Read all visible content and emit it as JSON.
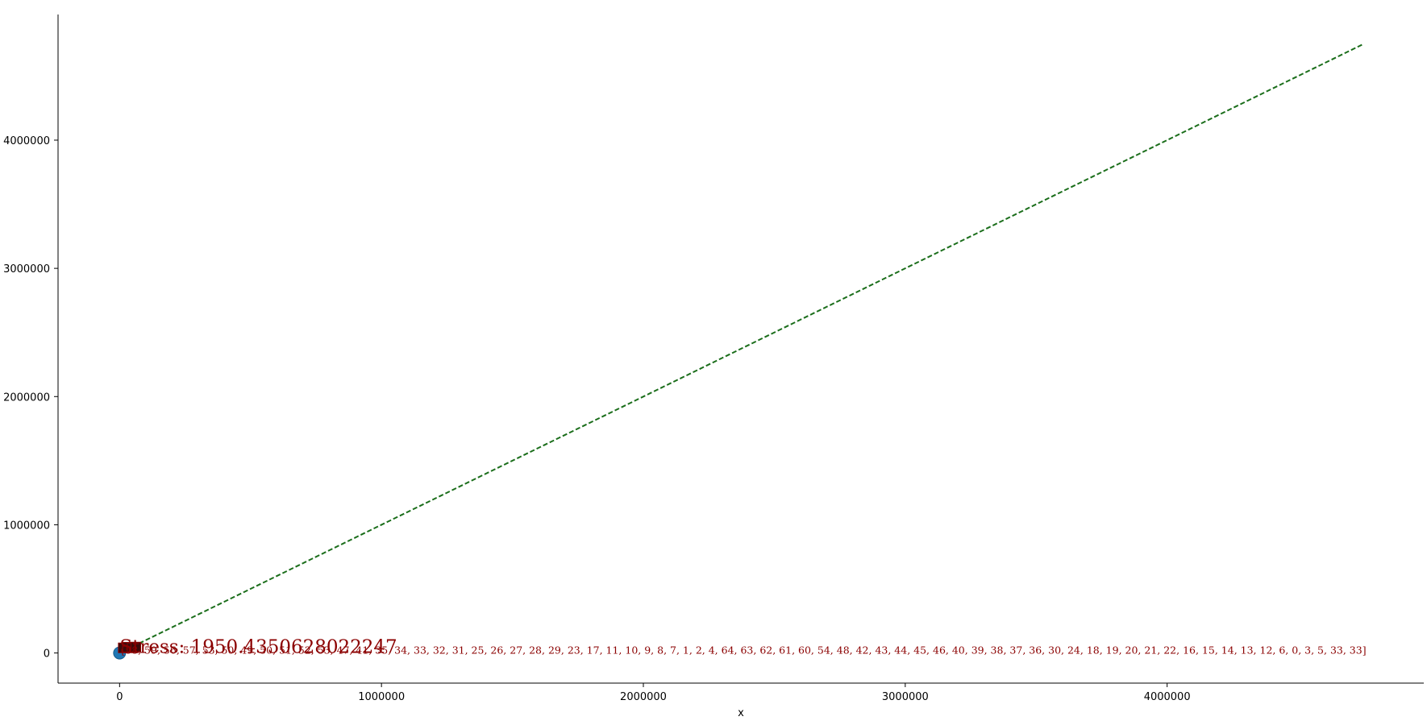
{
  "chart_data": {
    "type": "scatter",
    "title": "",
    "xlabel": "x",
    "ylabel": "",
    "xlim": [
      -235000,
      4980000
    ],
    "ylim": [
      -235000,
      4980000
    ],
    "xticks": [
      0,
      1000000,
      2000000,
      3000000,
      4000000
    ],
    "yticks": [
      0,
      1000000,
      2000000,
      3000000,
      4000000
    ],
    "grid": false,
    "legend": "none",
    "colors": {
      "point": "#1f77b4",
      "reference_line": "#1b6e1b",
      "annotation": "#8b0000",
      "marker_fill": "#3a0a0a"
    },
    "points": [
      {
        "x": 0,
        "y": 0
      }
    ],
    "reference_line": {
      "style": "dashed",
      "x": [
        0,
        4750000
      ],
      "y": [
        0,
        4750000
      ]
    },
    "cluster_markers": [
      {
        "x": 14000,
        "y": 40000
      },
      {
        "x": 30000,
        "y": 45000
      },
      {
        "x": 48000,
        "y": 40000
      },
      {
        "x": 62000,
        "y": 46000
      }
    ],
    "annotations": {
      "stress": "Stress: 1950.4350628022247",
      "order": "[58, 59, 56, 57, 53, 50, 49, 50, 51, 52, 53, 47, 41, 35, 34, 33, 32, 31, 25, 26, 27, 28, 29, 23, 17, 11, 10, 9, 8, 7, 1, 2, 4, 64, 63, 62, 61, 60, 54, 48, 42, 43, 44, 45, 46, 40, 39, 38, 37, 36, 30, 24, 18, 19, 20, 21, 22, 16, 15, 14, 13, 12, 6, 0, 3, 5, 33, 33]"
    }
  }
}
